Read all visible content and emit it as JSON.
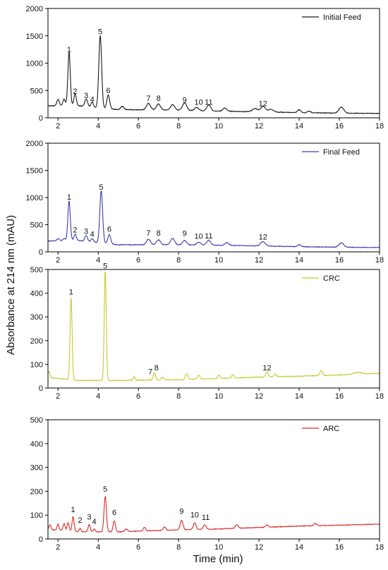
{
  "figure": {
    "y_axis_title": "Absorbance at 214 nm (mAU)",
    "x_axis_title": "Time (min)"
  },
  "chart_data": [
    {
      "type": "line",
      "legend": "Initial Feed",
      "legend_position": "top-right",
      "color": "#1a1a1a",
      "xlim": [
        1.5,
        18
      ],
      "ylim": [
        0,
        2000
      ],
      "xticks": [
        2,
        4,
        6,
        8,
        10,
        12,
        14,
        16,
        18
      ],
      "yticks": [
        0,
        500,
        1000,
        1500,
        2000
      ],
      "baseline": [
        [
          1.5,
          220
        ],
        [
          3,
          220
        ],
        [
          5,
          150
        ],
        [
          8,
          140
        ],
        [
          10,
          120
        ],
        [
          12,
          110
        ],
        [
          14,
          95
        ],
        [
          16,
          85
        ],
        [
          18,
          80
        ]
      ],
      "peaks": [
        {
          "x": 2.0,
          "y": 120,
          "w": 0.06
        },
        {
          "x": 2.3,
          "y": 120,
          "w": 0.06
        },
        {
          "x": 2.55,
          "y": 980,
          "w": 0.06
        },
        {
          "x": 2.85,
          "y": 220,
          "w": 0.06
        },
        {
          "x": 3.4,
          "y": 140,
          "w": 0.07
        },
        {
          "x": 3.7,
          "y": 90,
          "w": 0.06
        },
        {
          "x": 4.1,
          "y": 1330,
          "w": 0.07
        },
        {
          "x": 4.5,
          "y": 250,
          "w": 0.07
        },
        {
          "x": 5.2,
          "y": 60,
          "w": 0.08
        },
        {
          "x": 6.5,
          "y": 120,
          "w": 0.1
        },
        {
          "x": 7.0,
          "y": 110,
          "w": 0.1
        },
        {
          "x": 7.7,
          "y": 100,
          "w": 0.1
        },
        {
          "x": 8.3,
          "y": 140,
          "w": 0.1
        },
        {
          "x": 8.9,
          "y": 60,
          "w": 0.1
        },
        {
          "x": 9.5,
          "y": 110,
          "w": 0.1
        },
        {
          "x": 10.3,
          "y": 60,
          "w": 0.1
        },
        {
          "x": 11.8,
          "y": 60,
          "w": 0.12
        },
        {
          "x": 12.2,
          "y": 100,
          "w": 0.12
        },
        {
          "x": 12.6,
          "y": 50,
          "w": 0.12
        },
        {
          "x": 14.0,
          "y": 50,
          "w": 0.08
        },
        {
          "x": 14.5,
          "y": 30,
          "w": 0.08
        },
        {
          "x": 16.1,
          "y": 110,
          "w": 0.12
        }
      ],
      "peak_labels": [
        {
          "label": "1",
          "x": 2.55,
          "y": 1200
        },
        {
          "label": "2",
          "x": 2.85,
          "y": 440
        },
        {
          "label": "3",
          "x": 3.4,
          "y": 360
        },
        {
          "label": "4",
          "x": 3.7,
          "y": 290
        },
        {
          "label": "5",
          "x": 4.1,
          "y": 1530
        },
        {
          "label": "6",
          "x": 4.5,
          "y": 450
        },
        {
          "label": "7",
          "x": 6.5,
          "y": 310
        },
        {
          "label": "8",
          "x": 7.0,
          "y": 310
        },
        {
          "label": "9",
          "x": 8.3,
          "y": 280
        },
        {
          "label": "10",
          "x": 9.0,
          "y": 240
        },
        {
          "label": "11",
          "x": 9.5,
          "y": 240
        },
        {
          "label": "12",
          "x": 12.2,
          "y": 210
        }
      ]
    },
    {
      "type": "line",
      "legend": "Final Feed",
      "legend_position": "top-right",
      "color": "#3b3bb3",
      "xlim": [
        1.5,
        18
      ],
      "ylim": [
        0,
        2000
      ],
      "xticks": [
        2,
        4,
        6,
        8,
        10,
        12,
        14,
        16,
        18
      ],
      "yticks": [
        0,
        500,
        1000,
        1500,
        2000
      ],
      "baseline": [
        [
          1.5,
          200
        ],
        [
          3,
          210
        ],
        [
          5,
          130
        ],
        [
          8,
          130
        ],
        [
          10,
          120
        ],
        [
          12,
          110
        ],
        [
          14,
          95
        ],
        [
          16,
          85
        ],
        [
          18,
          80
        ]
      ],
      "peaks": [
        {
          "x": 2.0,
          "y": 40,
          "w": 0.06
        },
        {
          "x": 2.3,
          "y": 40,
          "w": 0.06
        },
        {
          "x": 2.55,
          "y": 730,
          "w": 0.06
        },
        {
          "x": 2.85,
          "y": 120,
          "w": 0.06
        },
        {
          "x": 3.4,
          "y": 100,
          "w": 0.07
        },
        {
          "x": 3.7,
          "y": 60,
          "w": 0.06
        },
        {
          "x": 4.15,
          "y": 960,
          "w": 0.07
        },
        {
          "x": 4.55,
          "y": 170,
          "w": 0.07
        },
        {
          "x": 6.5,
          "y": 100,
          "w": 0.1
        },
        {
          "x": 7.0,
          "y": 90,
          "w": 0.1
        },
        {
          "x": 7.7,
          "y": 120,
          "w": 0.1
        },
        {
          "x": 8.3,
          "y": 80,
          "w": 0.1
        },
        {
          "x": 9.0,
          "y": 50,
          "w": 0.1
        },
        {
          "x": 9.5,
          "y": 90,
          "w": 0.1
        },
        {
          "x": 10.4,
          "y": 50,
          "w": 0.1
        },
        {
          "x": 12.2,
          "y": 80,
          "w": 0.12
        },
        {
          "x": 14.0,
          "y": 40,
          "w": 0.08
        },
        {
          "x": 16.1,
          "y": 80,
          "w": 0.12
        }
      ],
      "peak_labels": [
        {
          "label": "1",
          "x": 2.55,
          "y": 960
        },
        {
          "label": "2",
          "x": 2.85,
          "y": 360
        },
        {
          "label": "3",
          "x": 3.4,
          "y": 330
        },
        {
          "label": "4",
          "x": 3.7,
          "y": 280
        },
        {
          "label": "5",
          "x": 4.15,
          "y": 1140
        },
        {
          "label": "6",
          "x": 4.55,
          "y": 370
        },
        {
          "label": "7",
          "x": 6.5,
          "y": 300
        },
        {
          "label": "8",
          "x": 7.0,
          "y": 300
        },
        {
          "label": "9",
          "x": 8.3,
          "y": 290
        },
        {
          "label": "10",
          "x": 9.0,
          "y": 240
        },
        {
          "label": "11",
          "x": 9.5,
          "y": 250
        },
        {
          "label": "12",
          "x": 12.2,
          "y": 230
        }
      ]
    },
    {
      "type": "line",
      "legend": "CRC",
      "legend_position": "top-right",
      "color": "#c8c832",
      "xlim": [
        1.5,
        18
      ],
      "ylim": [
        0,
        500
      ],
      "xticks": [
        2,
        4,
        6,
        8,
        10,
        12,
        14,
        16,
        18
      ],
      "yticks": [
        0,
        100,
        200,
        300,
        400,
        500
      ],
      "baseline": [
        [
          1.5,
          45
        ],
        [
          3,
          32
        ],
        [
          5,
          32
        ],
        [
          8,
          35
        ],
        [
          10,
          40
        ],
        [
          12,
          46
        ],
        [
          14,
          50
        ],
        [
          16,
          55
        ],
        [
          18,
          62
        ]
      ],
      "peaks": [
        {
          "x": 1.55,
          "y": 25,
          "w": 0.05
        },
        {
          "x": 2.65,
          "y": 348,
          "w": 0.05
        },
        {
          "x": 4.35,
          "y": 465,
          "w": 0.05
        },
        {
          "x": 5.8,
          "y": 15,
          "w": 0.05
        },
        {
          "x": 6.8,
          "y": 30,
          "w": 0.06
        },
        {
          "x": 7.2,
          "y": 12,
          "w": 0.06
        },
        {
          "x": 8.4,
          "y": 25,
          "w": 0.06
        },
        {
          "x": 9.0,
          "y": 18,
          "w": 0.06
        },
        {
          "x": 10.0,
          "y": 14,
          "w": 0.06
        },
        {
          "x": 10.7,
          "y": 15,
          "w": 0.06
        },
        {
          "x": 12.4,
          "y": 22,
          "w": 0.06
        },
        {
          "x": 12.8,
          "y": 12,
          "w": 0.06
        },
        {
          "x": 15.1,
          "y": 22,
          "w": 0.06
        },
        {
          "x": 16.9,
          "y": 8,
          "w": 0.2
        }
      ],
      "peak_labels": [
        {
          "label": "1",
          "x": 2.65,
          "y": 395
        },
        {
          "label": "5",
          "x": 4.35,
          "y": 505
        },
        {
          "label": "7",
          "x": 6.6,
          "y": 58
        },
        {
          "label": "8",
          "x": 6.9,
          "y": 75
        },
        {
          "label": "12",
          "x": 12.4,
          "y": 75
        }
      ]
    },
    {
      "type": "line",
      "legend": "ARC",
      "legend_position": "top-right",
      "color": "#dd2a2a",
      "xlim": [
        1.5,
        18
      ],
      "ylim": [
        0,
        500
      ],
      "xticks": [
        2,
        4,
        6,
        8,
        10,
        12,
        14,
        16,
        18
      ],
      "yticks": [
        0,
        100,
        200,
        300,
        400,
        500
      ],
      "baseline": [
        [
          1.5,
          40
        ],
        [
          3,
          30
        ],
        [
          5,
          30
        ],
        [
          8,
          38
        ],
        [
          10,
          42
        ],
        [
          12,
          48
        ],
        [
          14,
          54
        ],
        [
          16,
          58
        ],
        [
          18,
          62
        ]
      ],
      "peaks": [
        {
          "x": 1.6,
          "y": 20,
          "w": 0.05
        },
        {
          "x": 2.0,
          "y": 25,
          "w": 0.05
        },
        {
          "x": 2.3,
          "y": 30,
          "w": 0.05
        },
        {
          "x": 2.5,
          "y": 35,
          "w": 0.05
        },
        {
          "x": 2.75,
          "y": 62,
          "w": 0.05
        },
        {
          "x": 3.1,
          "y": 15,
          "w": 0.05
        },
        {
          "x": 3.55,
          "y": 30,
          "w": 0.05
        },
        {
          "x": 3.8,
          "y": 12,
          "w": 0.05
        },
        {
          "x": 4.35,
          "y": 148,
          "w": 0.06
        },
        {
          "x": 4.8,
          "y": 45,
          "w": 0.06
        },
        {
          "x": 5.4,
          "y": 12,
          "w": 0.06
        },
        {
          "x": 6.3,
          "y": 15,
          "w": 0.06
        },
        {
          "x": 7.3,
          "y": 15,
          "w": 0.06
        },
        {
          "x": 8.15,
          "y": 40,
          "w": 0.07
        },
        {
          "x": 8.8,
          "y": 28,
          "w": 0.07
        },
        {
          "x": 9.3,
          "y": 18,
          "w": 0.07
        },
        {
          "x": 10.9,
          "y": 15,
          "w": 0.07
        },
        {
          "x": 12.4,
          "y": 10,
          "w": 0.07
        },
        {
          "x": 14.8,
          "y": 10,
          "w": 0.07
        }
      ],
      "peak_labels": [
        {
          "label": "1",
          "x": 2.75,
          "y": 112
        },
        {
          "label": "2",
          "x": 3.1,
          "y": 68
        },
        {
          "label": "3",
          "x": 3.55,
          "y": 82
        },
        {
          "label": "4",
          "x": 3.8,
          "y": 62
        },
        {
          "label": "5",
          "x": 4.35,
          "y": 198
        },
        {
          "label": "6",
          "x": 4.8,
          "y": 100
        },
        {
          "label": "9",
          "x": 8.15,
          "y": 105
        },
        {
          "label": "10",
          "x": 8.8,
          "y": 90
        },
        {
          "label": "11",
          "x": 9.35,
          "y": 80
        }
      ]
    }
  ]
}
